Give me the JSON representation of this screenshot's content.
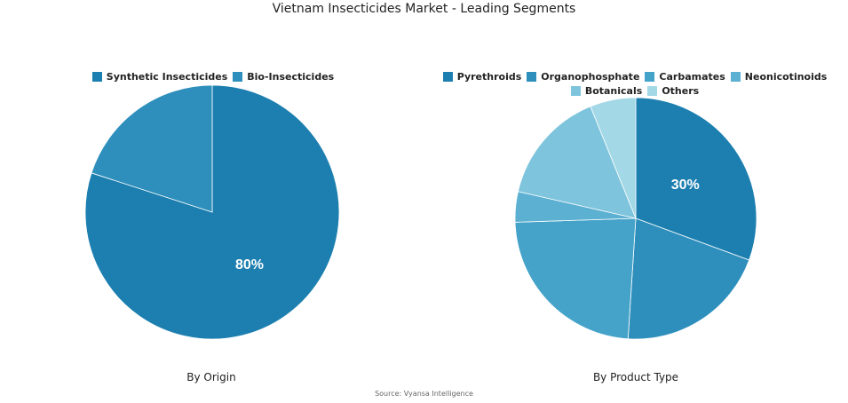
{
  "title": "Vietnam Insecticides Market - Leading Segments",
  "source": "Source: Vyansa Intelligence",
  "chart_data": [
    {
      "type": "pie",
      "subtitle": "By Origin",
      "labels": [
        "Synthetic Insecticides",
        "Bio-Insecticides"
      ],
      "values": [
        80,
        20
      ],
      "colors": [
        "#1c7fb0",
        "#2e8fbc"
      ],
      "data_labels": [
        "80%",
        ""
      ],
      "legend": "top"
    },
    {
      "type": "pie",
      "subtitle": "By Product Type",
      "labels": [
        "Pyrethroids",
        "Organophosphate",
        "Carbamates",
        "Neonicotinoids",
        "Botanicals",
        "Others"
      ],
      "values": [
        30,
        20,
        23,
        4,
        15,
        6
      ],
      "colors": [
        "#1c7fb0",
        "#2e8fbc",
        "#45a3c9",
        "#5cb0d2",
        "#7ec4dc",
        "#a3d8e7"
      ],
      "data_labels": [
        "30%",
        "",
        "",
        "",
        "",
        ""
      ],
      "legend": "top"
    }
  ]
}
